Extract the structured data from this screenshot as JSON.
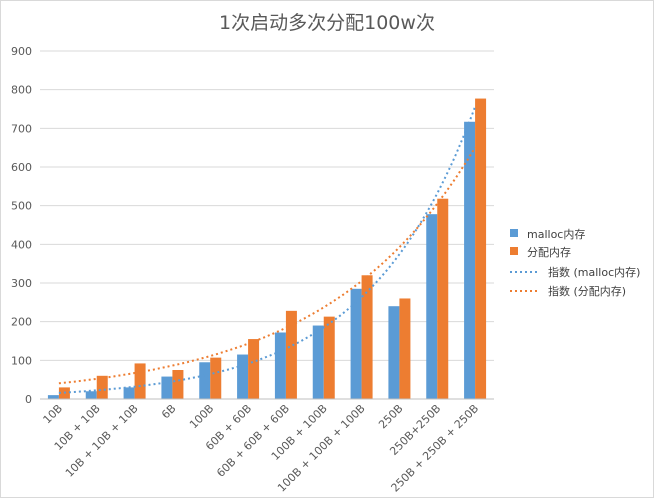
{
  "colors": {
    "malloc": "#5b9bd5",
    "alloc": "#ed7d31",
    "grid": "#d9d9d9"
  },
  "chart_data": {
    "type": "bar",
    "title": "1次启动多次分配100w次",
    "xlabel": "",
    "ylabel": "",
    "ylim": [
      0,
      900
    ],
    "ytick_step": 100,
    "grid": true,
    "legend_position": "right",
    "categories": [
      "10B",
      "10B + 10B",
      "10B + 10B + 10B",
      "6B",
      "100B",
      "60B + 60B",
      "60B + 60B + 60B",
      "100B + 100B",
      "100B + 100B + 100B",
      "250B",
      "250B+250B",
      "250B + 250B + 250B"
    ],
    "series": [
      {
        "name": "malloc内存",
        "color": "#5b9bd5",
        "values": [
          10,
          20,
          30,
          58,
          95,
          115,
          172,
          190,
          285,
          240,
          478,
          717
        ]
      },
      {
        "name": "分配内存",
        "color": "#ed7d31",
        "values": [
          30,
          60,
          92,
          75,
          107,
          155,
          228,
          213,
          320,
          260,
          518,
          777
        ]
      }
    ],
    "trendlines": [
      {
        "name": "指数 (malloc内存)",
        "type": "exponential",
        "of_series": 0,
        "color": "#5b9bd5"
      },
      {
        "name": "指数 (分配内存)",
        "type": "exponential",
        "of_series": 1,
        "color": "#ed7d31"
      }
    ]
  }
}
